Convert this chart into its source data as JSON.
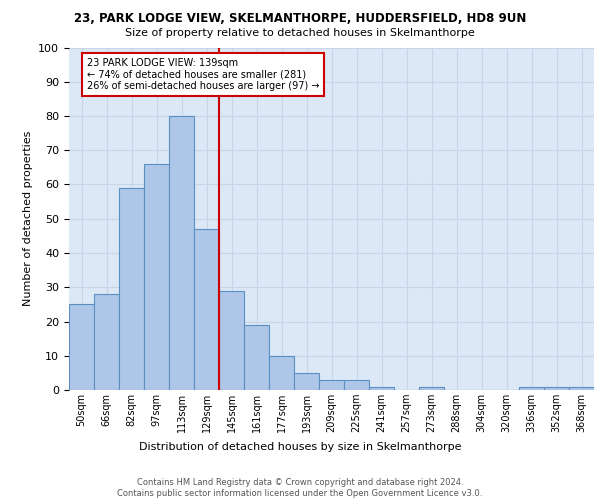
{
  "title1": "23, PARK LODGE VIEW, SKELMANTHORPE, HUDDERSFIELD, HD8 9UN",
  "title2": "Size of property relative to detached houses in Skelmanthorpe",
  "xlabel": "Distribution of detached houses by size in Skelmanthorpe",
  "ylabel": "Number of detached properties",
  "bar_labels": [
    "50sqm",
    "66sqm",
    "82sqm",
    "97sqm",
    "113sqm",
    "129sqm",
    "145sqm",
    "161sqm",
    "177sqm",
    "193sqm",
    "209sqm",
    "225sqm",
    "241sqm",
    "257sqm",
    "273sqm",
    "288sqm",
    "304sqm",
    "320sqm",
    "336sqm",
    "352sqm",
    "368sqm"
  ],
  "bar_values": [
    25,
    28,
    59,
    66,
    80,
    47,
    29,
    19,
    10,
    5,
    3,
    3,
    1,
    0,
    1,
    0,
    0,
    0,
    1,
    1,
    1
  ],
  "bar_color": "#aec6e8",
  "bar_edge_color": "#5a8fc2",
  "vline_x": 5.5,
  "vline_color": "#cc0000",
  "annotation_text": "23 PARK LODGE VIEW: 139sqm\n← 74% of detached houses are smaller (281)\n26% of semi-detached houses are larger (97) →",
  "annotation_box_color": "#cc0000",
  "annotation_text_color": "#000000",
  "ylim": [
    0,
    100
  ],
  "yticks": [
    0,
    10,
    20,
    30,
    40,
    50,
    60,
    70,
    80,
    90,
    100
  ],
  "grid_color": "#c8d4e8",
  "bg_color": "#dce8f5",
  "footer1": "Contains HM Land Registry data © Crown copyright and database right 2024.",
  "footer2": "Contains public sector information licensed under the Open Government Licence v3.0."
}
